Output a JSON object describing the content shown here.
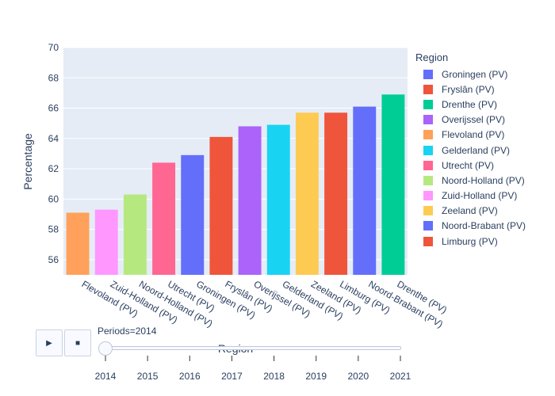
{
  "chart_data": {
    "type": "bar",
    "xlabel": "Region",
    "ylabel": "Percentage",
    "ylim": [
      55,
      70
    ],
    "yticks": [
      56,
      58,
      60,
      62,
      64,
      66,
      68,
      70
    ],
    "grid": true,
    "legend_title": "Region",
    "legend_position": "right",
    "categories": [
      "Flevoland (PV)",
      "Zuid-Holland (PV)",
      "Noord-Holland (PV)",
      "Utrecht (PV)",
      "Groningen (PV)",
      "Fryslân (PV)",
      "Overijssel (PV)",
      "Gelderland (PV)",
      "Zeeland (PV)",
      "Limburg (PV)",
      "Noord-Brabant (PV)",
      "Drenthe (PV)"
    ],
    "values": [
      59.1,
      59.3,
      60.3,
      62.4,
      62.9,
      64.1,
      64.8,
      64.9,
      65.7,
      65.7,
      66.1,
      66.9
    ],
    "colors": [
      "#FFA15A",
      "#FF97FF",
      "#B6E880",
      "#FF6692",
      "#636EFA",
      "#EF553B",
      "#AB63FA",
      "#19D3F3",
      "#FECB52",
      "#EF553B",
      "#636EFA",
      "#00CC96"
    ],
    "series": [
      {
        "name": "Groningen (PV)",
        "color": "#636EFA"
      },
      {
        "name": "Fryslân (PV)",
        "color": "#EF553B"
      },
      {
        "name": "Drenthe (PV)",
        "color": "#00CC96"
      },
      {
        "name": "Overijssel (PV)",
        "color": "#AB63FA"
      },
      {
        "name": "Flevoland (PV)",
        "color": "#FFA15A"
      },
      {
        "name": "Gelderland (PV)",
        "color": "#19D3F3"
      },
      {
        "name": "Utrecht (PV)",
        "color": "#FF6692"
      },
      {
        "name": "Noord-Holland (PV)",
        "color": "#B6E880"
      },
      {
        "name": "Zuid-Holland (PV)",
        "color": "#FF97FF"
      },
      {
        "name": "Zeeland (PV)",
        "color": "#FECB52"
      },
      {
        "name": "Noord-Brabant (PV)",
        "color": "#636EFA"
      },
      {
        "name": "Limburg (PV)",
        "color": "#EF553B"
      }
    ]
  },
  "animation": {
    "current_label": "Periods=2014",
    "play_icon": "play-icon",
    "stop_icon": "stop-icon",
    "periods": [
      "2014",
      "2015",
      "2016",
      "2017",
      "2018",
      "2019",
      "2020",
      "2021"
    ],
    "current_index": 0
  },
  "colors": {
    "plot_bg": "#E5ECF6",
    "grid": "#ffffff",
    "text": "#2a3f5f"
  }
}
